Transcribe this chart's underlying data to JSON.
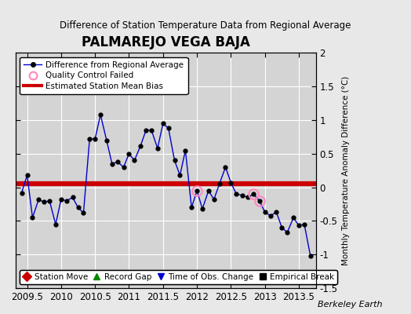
{
  "title": "PALMAREJO VEGA BAJA",
  "subtitle": "Difference of Station Temperature Data from Regional Average",
  "ylabel_right": "Monthly Temperature Anomaly Difference (°C)",
  "xlim": [
    2009.33,
    2013.75
  ],
  "ylim": [
    -1.5,
    2.0
  ],
  "yticks_right": [
    2.0,
    1.5,
    1.0,
    0.5,
    0.0,
    -0.5,
    -1.0,
    -1.5
  ],
  "ytick_labels_right": [
    "2",
    "1.5",
    "1",
    "0.5",
    "0",
    "-0.5",
    "-1",
    "-1.5"
  ],
  "xticks": [
    2009.5,
    2010.0,
    2010.5,
    2011.0,
    2011.5,
    2012.0,
    2012.5,
    2013.0,
    2013.5
  ],
  "xtick_labels": [
    "2009.5",
    "2010",
    "2010.5",
    "2011",
    "2011.5",
    "2012",
    "2012.5",
    "2013",
    "2013.5"
  ],
  "bias_line": 0.05,
  "fig_bg_color": "#e8e8e8",
  "plot_bg_color": "#d4d4d4",
  "line_color": "#0000cc",
  "marker_color": "#000000",
  "bias_color": "#cc0000",
  "qc_fail_color": "#ff88bb",
  "watermark": "Berkeley Earth",
  "times": [
    2009.42,
    2009.5,
    2009.58,
    2009.67,
    2009.75,
    2009.83,
    2009.92,
    2010.0,
    2010.08,
    2010.17,
    2010.25,
    2010.33,
    2010.42,
    2010.5,
    2010.58,
    2010.67,
    2010.75,
    2010.83,
    2010.92,
    2011.0,
    2011.08,
    2011.17,
    2011.25,
    2011.33,
    2011.42,
    2011.5,
    2011.58,
    2011.67,
    2011.75,
    2011.83,
    2011.92,
    2012.0,
    2012.08,
    2012.17,
    2012.25,
    2012.33,
    2012.42,
    2012.5,
    2012.58,
    2012.67,
    2012.75,
    2012.83,
    2012.92,
    2013.0,
    2013.08,
    2013.17,
    2013.25,
    2013.33,
    2013.42,
    2013.5,
    2013.58,
    2013.67
  ],
  "values": [
    -0.08,
    0.18,
    -0.45,
    -0.18,
    -0.22,
    -0.2,
    -0.55,
    -0.18,
    -0.2,
    -0.15,
    -0.3,
    -0.38,
    0.72,
    0.72,
    1.08,
    0.7,
    0.35,
    0.38,
    0.3,
    0.5,
    0.4,
    0.62,
    0.85,
    0.85,
    0.58,
    0.95,
    0.88,
    0.4,
    0.18,
    0.55,
    -0.3,
    -0.05,
    -0.32,
    -0.05,
    -0.18,
    0.05,
    0.3,
    0.07,
    -0.1,
    -0.12,
    -0.15,
    -0.1,
    -0.2,
    -0.37,
    -0.42,
    -0.37,
    -0.6,
    -0.67,
    -0.45,
    -0.57,
    -0.55,
    -1.02
  ],
  "qc_fail_indices": [
    31,
    41,
    42
  ]
}
